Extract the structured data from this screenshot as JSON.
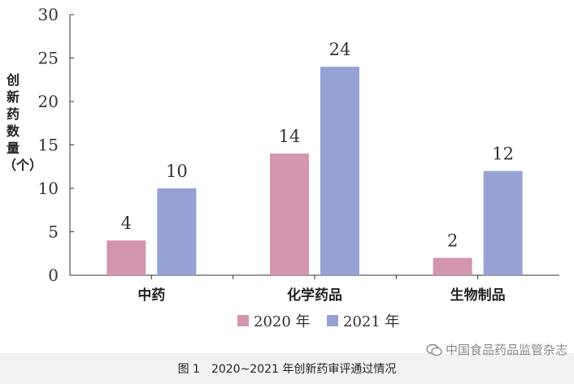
{
  "chart_data": {
    "type": "bar",
    "categories": [
      "中药",
      "化学药品",
      "生物制品"
    ],
    "series": [
      {
        "name": "2020 年",
        "values": [
          4,
          14,
          2
        ],
        "color": "#d495b0"
      },
      {
        "name": "2021 年",
        "values": [
          10,
          24,
          12
        ],
        "color": "#96a2d4"
      }
    ],
    "ylabel": "创新药数量（个）",
    "xlabel": "",
    "ylim": [
      0,
      30
    ],
    "yticks": [
      0,
      5,
      10,
      15,
      20,
      25,
      30
    ],
    "legend_position": "bottom-center",
    "grid": false
  },
  "caption": "图 1　2020~2021 年创新药审评通过情况",
  "watermark": "中国食品药品监管杂志"
}
